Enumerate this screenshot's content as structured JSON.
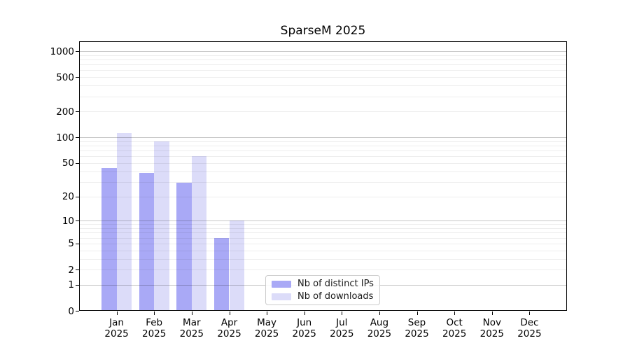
{
  "title": "SparseM 2025",
  "chart_data": {
    "type": "bar",
    "title": "SparseM 2025",
    "categories": [
      "Jan",
      "Feb",
      "Mar",
      "Apr",
      "May",
      "Jun",
      "Jul",
      "Aug",
      "Sep",
      "Oct",
      "Nov",
      "Dec"
    ],
    "year_label": "2025",
    "series": [
      {
        "name": "Nb of distinct IPs",
        "color": "#a9a9f6",
        "values": [
          44,
          38,
          29,
          6,
          0,
          0,
          0,
          0,
          0,
          0,
          0,
          0
        ]
      },
      {
        "name": "Nb of downloads",
        "color": "#dcdcf9",
        "values": [
          112,
          90,
          60,
          10,
          0,
          0,
          0,
          0,
          0,
          0,
          0,
          0
        ]
      }
    ],
    "yscale": "log1p",
    "ylim": [
      0,
      1000
    ],
    "yticks": [
      0,
      1,
      2,
      5,
      10,
      20,
      50,
      100,
      200,
      500,
      1000
    ],
    "major_gridlines": [
      1,
      10,
      100,
      1000
    ],
    "grid": "both",
    "legend_position": "lower center",
    "colors": {
      "major_grid": "#c6c6c6",
      "minor_grid": "#ededed",
      "axis": "#000000",
      "background": "#ffffff"
    }
  }
}
